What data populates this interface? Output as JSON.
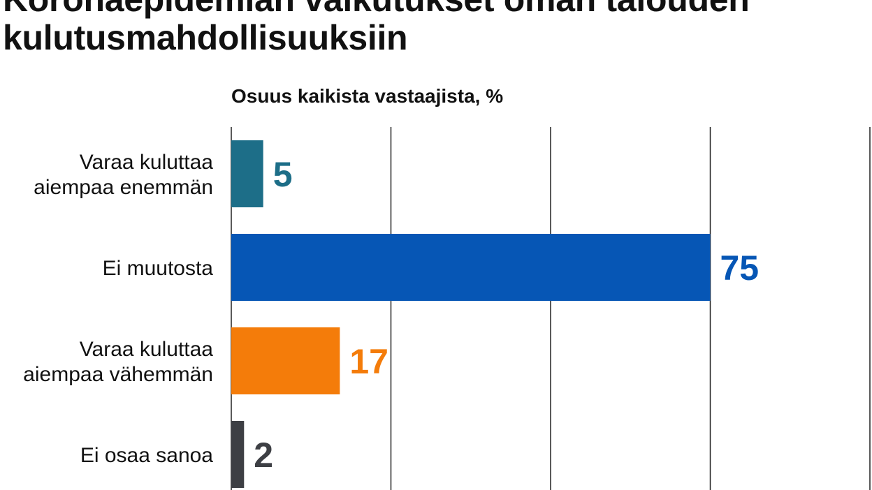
{
  "chart_data": {
    "type": "bar",
    "orientation": "horizontal",
    "title": "Koronaepidemian vaikutukset oman talouden kulutusmahdollisuuksiin",
    "title_lines": [
      "Koronaepidemian vaikutukset oman talouden",
      "kulutusmahdollisuuksiin"
    ],
    "subtitle": "Osuus kaikista vastaajista, %",
    "categories": [
      [
        "Varaa kuluttaa",
        "aiempaa enemmän"
      ],
      [
        "Ei muutosta"
      ],
      [
        "Varaa kuluttaa",
        "aiempaa vähemmän"
      ],
      [
        "Ei osaa sanoa"
      ]
    ],
    "values": [
      5,
      75,
      17,
      2
    ],
    "colors": [
      "#1d6e88",
      "#0656b5",
      "#f47c0a",
      "#3d3f44"
    ],
    "xlim": [
      0,
      100
    ],
    "gridlines": [
      25,
      50,
      75,
      100
    ],
    "grid": true,
    "legend": "none"
  }
}
